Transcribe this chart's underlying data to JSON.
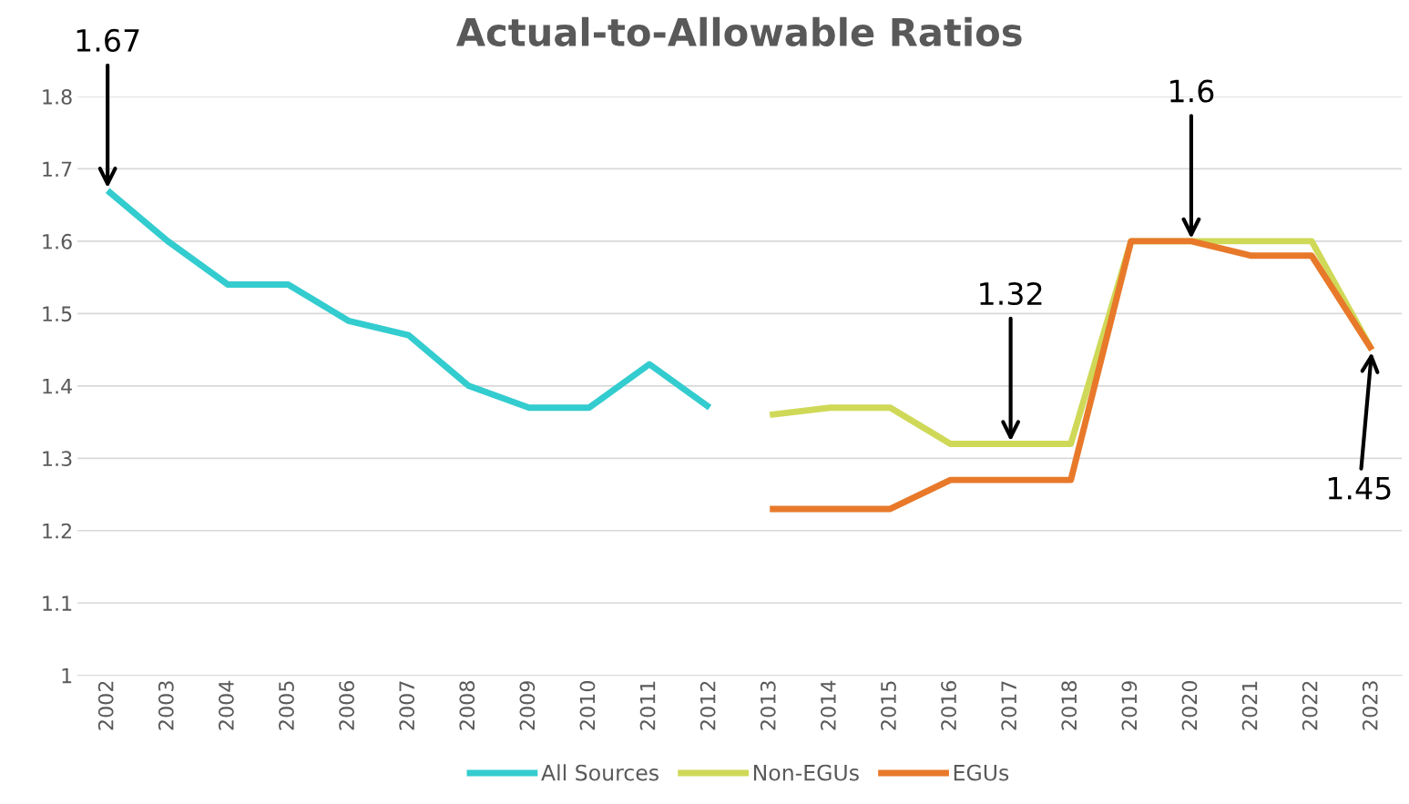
{
  "chart_data": {
    "type": "line",
    "title": "Actual-to-Allowable Ratios",
    "categories": [
      "2002",
      "2003",
      "2004",
      "2005",
      "2006",
      "2007",
      "2008",
      "2009",
      "2010",
      "2011",
      "2012",
      "2013",
      "2014",
      "2015",
      "2016",
      "2017",
      "2018",
      "2019",
      "2020",
      "2021",
      "2022",
      "2023"
    ],
    "series": [
      {
        "name": "All Sources",
        "color": "#33cccf",
        "values": [
          1.67,
          1.6,
          1.54,
          1.54,
          1.49,
          1.47,
          1.4,
          1.37,
          1.37,
          1.43,
          1.37,
          null,
          null,
          null,
          null,
          null,
          null,
          null,
          null,
          null,
          null,
          null
        ]
      },
      {
        "name": "Non-EGUs",
        "color": "#cfd957",
        "values": [
          null,
          null,
          null,
          null,
          null,
          null,
          null,
          null,
          null,
          null,
          null,
          1.36,
          1.37,
          1.37,
          1.32,
          1.32,
          1.32,
          1.6,
          1.6,
          1.6,
          1.6,
          1.45
        ]
      },
      {
        "name": "EGUs",
        "color": "#e8792a",
        "values": [
          null,
          null,
          null,
          null,
          null,
          null,
          null,
          null,
          null,
          null,
          null,
          1.23,
          1.23,
          1.23,
          1.27,
          1.27,
          1.27,
          1.6,
          1.6,
          1.58,
          1.58,
          1.45
        ]
      }
    ],
    "ylim": [
      1,
      1.8
    ],
    "yticks": [
      1,
      1.1,
      1.2,
      1.3,
      1.4,
      1.5,
      1.6,
      1.7,
      1.8
    ],
    "grid": "y",
    "legend": "bottom",
    "marker": "none",
    "line_style": "solid",
    "annotations": [
      {
        "text": "1.67",
        "x": "2002",
        "y": 1.67
      },
      {
        "text": "1.32",
        "x": "2017",
        "y": 1.32
      },
      {
        "text": "1.6",
        "x": "2020",
        "y": 1.6
      },
      {
        "text": "1.45",
        "x": "2023",
        "y": 1.45
      }
    ]
  }
}
